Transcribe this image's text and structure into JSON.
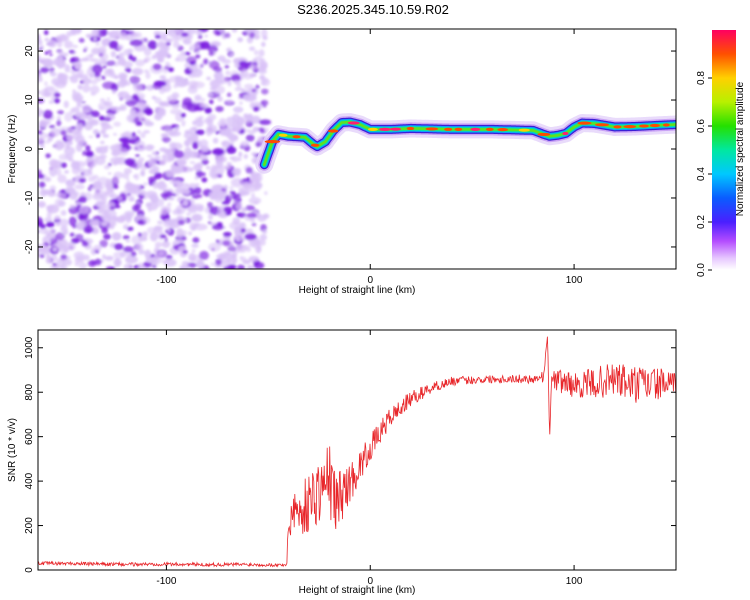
{
  "title": "S236.2025.345.10.59.R02",
  "colors": {
    "frame": "#000000",
    "snr_line": "#e8262a",
    "noise_light": "#d9c2f7",
    "noise_dark": "#7b1fe0"
  },
  "chart_data": [
    {
      "type": "heatmap",
      "name": "spectrogram",
      "xlabel": "Height of straight line (km)",
      "ylabel": "Frequency (Hz)",
      "xlim": [
        -163,
        150
      ],
      "ylim": [
        -24.5,
        24.5
      ],
      "xticks": [
        -100,
        0,
        100
      ],
      "xtick_labels": [
        "-100",
        "0",
        "100"
      ],
      "yticks": [
        -20,
        -10,
        0,
        10,
        20
      ],
      "ytick_labels": [
        "-20",
        "-10",
        "0",
        "10",
        "20"
      ],
      "noise_region_x": [
        -163,
        -51
      ],
      "ridge": {
        "x": [
          -52,
          -48,
          -45,
          -40,
          -32,
          -28,
          -26,
          -22,
          -18,
          -14,
          -10,
          -5,
          0,
          10,
          20,
          40,
          60,
          80,
          85,
          88,
          92,
          96,
          100,
          104,
          110,
          120,
          130,
          140,
          150
        ],
        "freq": [
          -3.2,
          1.5,
          3.0,
          2.6,
          2.4,
          1.0,
          0.5,
          1.5,
          3.8,
          5.4,
          5.5,
          5.0,
          4.0,
          4.0,
          4.2,
          4.0,
          4.0,
          3.8,
          3.0,
          2.6,
          2.8,
          3.2,
          4.5,
          5.3,
          5.2,
          4.5,
          4.6,
          4.8,
          5.0
        ]
      },
      "colorbar": {
        "label": "Normalized spectral amplitude",
        "range": [
          0,
          1
        ],
        "ticks": [
          0.0,
          0.2,
          0.4,
          0.6,
          0.8
        ],
        "tick_labels": [
          "0.0",
          "0.2",
          "0.4",
          "0.6",
          "0.8"
        ]
      }
    },
    {
      "type": "line",
      "name": "snr",
      "xlabel": "Height of straight line (km)",
      "ylabel": "SNR (10 * v/v)",
      "xlim": [
        -163,
        150
      ],
      "ylim": [
        0,
        1080
      ],
      "xticks": [
        -100,
        0,
        100
      ],
      "xtick_labels": [
        "-100",
        "0",
        "100"
      ],
      "yticks": [
        0,
        200,
        400,
        600,
        800,
        1000
      ],
      "ytick_labels": [
        "0",
        "200",
        "400",
        "600",
        "800",
        "1000"
      ],
      "series": [
        {
          "name": "SNR",
          "x": [
            -163,
            -140,
            -120,
            -100,
            -80,
            -60,
            -45,
            -41,
            -40,
            -38,
            -35,
            -30,
            -25,
            -20,
            -17,
            -15,
            -10,
            -5,
            0,
            5,
            10,
            20,
            30,
            40,
            60,
            80,
            85,
            87,
            88,
            89,
            91,
            95,
            100,
            110,
            120,
            130,
            140,
            150
          ],
          "y": [
            30,
            28,
            25,
            27,
            24,
            25,
            22,
            25,
            180,
            300,
            250,
            310,
            360,
            410,
            300,
            330,
            390,
            470,
            550,
            620,
            690,
            770,
            820,
            850,
            860,
            860,
            870,
            1060,
            580,
            880,
            850,
            850,
            830,
            840,
            860,
            830,
            840,
            830
          ],
          "noise": [
            8,
            8,
            8,
            8,
            8,
            8,
            7,
            8,
            100,
            120,
            110,
            140,
            150,
            170,
            140,
            130,
            90,
            70,
            60,
            50,
            45,
            35,
            25,
            20,
            18,
            20,
            25,
            0,
            0,
            30,
            45,
            60,
            55,
            70,
            80,
            90,
            75,
            55
          ]
        }
      ]
    }
  ]
}
